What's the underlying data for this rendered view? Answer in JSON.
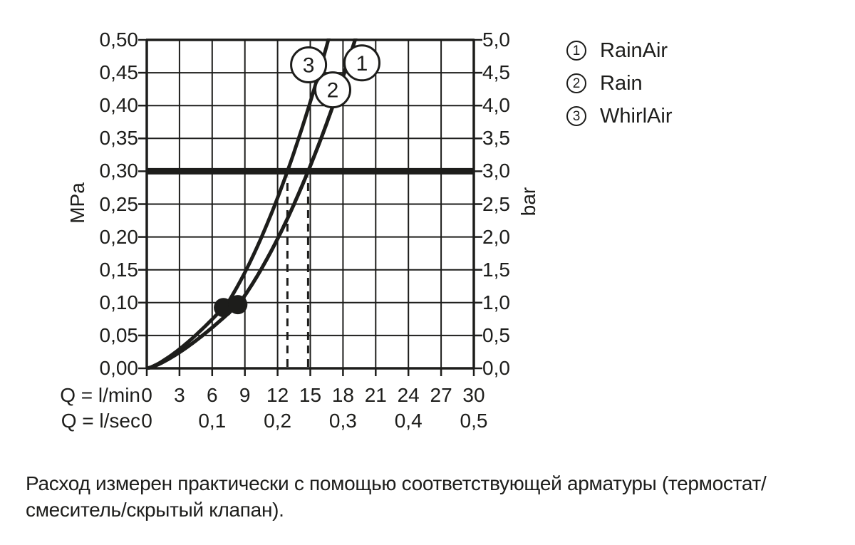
{
  "page": {
    "background": "#ffffff",
    "ink": "#1d1d1b"
  },
  "chart_data": {
    "type": "line",
    "title": "",
    "x_axis": {
      "row1_label": "Q = l/min",
      "row2_label": "Q = l/sec",
      "row1_ticks": [
        "0",
        "3",
        "6",
        "9",
        "12",
        "15",
        "18",
        "21",
        "24",
        "27",
        "30"
      ],
      "row2_ticks": [
        "0",
        "0,1",
        "0,2",
        "0,3",
        "0,4",
        "0,5"
      ],
      "min": 0,
      "max": 30,
      "grid_step_lmin": 3
    },
    "y_axis_left": {
      "unit": "MPa",
      "ticks_top_to_bottom": [
        "0,50",
        "0,45",
        "0,40",
        "0,35",
        "0,30",
        "0,25",
        "0,20",
        "0,15",
        "0,10",
        "0,05",
        "0,00"
      ],
      "min": 0,
      "max": 0.5,
      "grid_step_mpa": 0.05
    },
    "y_axis_right": {
      "unit": "bar",
      "ticks_top_to_bottom": [
        "5,0",
        "4,5",
        "4,0",
        "3,5",
        "3,0",
        "2,5",
        "2,0",
        "1,5",
        "1,0",
        "0,5",
        "0,0"
      ]
    },
    "grid": true,
    "legend_position": "top-right",
    "reference_line_p_mpa": 0.3,
    "dashed_guides_q_lmin": [
      12.9,
      14.8
    ],
    "series": [
      {
        "num": "1",
        "name": "RainAir",
        "flow_lmin_at_0_3_mpa": 14.8,
        "curve_points_lmin_mpa": [
          [
            0,
            0
          ],
          [
            8.35,
            0.097
          ],
          [
            14.8,
            0.3
          ],
          [
            19.1,
            0.5
          ]
        ],
        "label_anchor": {
          "q_lmin": 19.74,
          "p_mpa": 0.465
        }
      },
      {
        "num": "2",
        "name": "Rain",
        "flow_lmin_at_0_3_mpa": 14.8,
        "curve_points_lmin_mpa": [
          [
            0,
            0
          ],
          [
            8.35,
            0.097
          ],
          [
            14.8,
            0.3
          ],
          [
            19.1,
            0.5
          ]
        ],
        "label_anchor": {
          "q_lmin": 17.06,
          "p_mpa": 0.424
        }
      },
      {
        "num": "3",
        "name": "WhirlAir",
        "flow_lmin_at_0_3_mpa": 12.9,
        "curve_points_lmin_mpa": [
          [
            0,
            0
          ],
          [
            7.03,
            0.0925
          ],
          [
            12.9,
            0.3
          ],
          [
            16.65,
            0.5
          ]
        ],
        "label_anchor": {
          "q_lmin": 14.84,
          "p_mpa": 0.462
        }
      }
    ],
    "dots_on_curves": [
      {
        "curve_num": "3",
        "p_mpa": 0.0925
      },
      {
        "curve_num": "2",
        "p_mpa": 0.097
      }
    ]
  },
  "legend": {
    "items": [
      {
        "num": "1",
        "label": "RainAir"
      },
      {
        "num": "2",
        "label": "Rain"
      },
      {
        "num": "3",
        "label": "WhirlAir"
      }
    ]
  },
  "caption": {
    "lines": [
      "Расход измерен практически с помощью соответствующей арматуры (термостат/",
      "смеситель/скрытый клапан)."
    ]
  }
}
